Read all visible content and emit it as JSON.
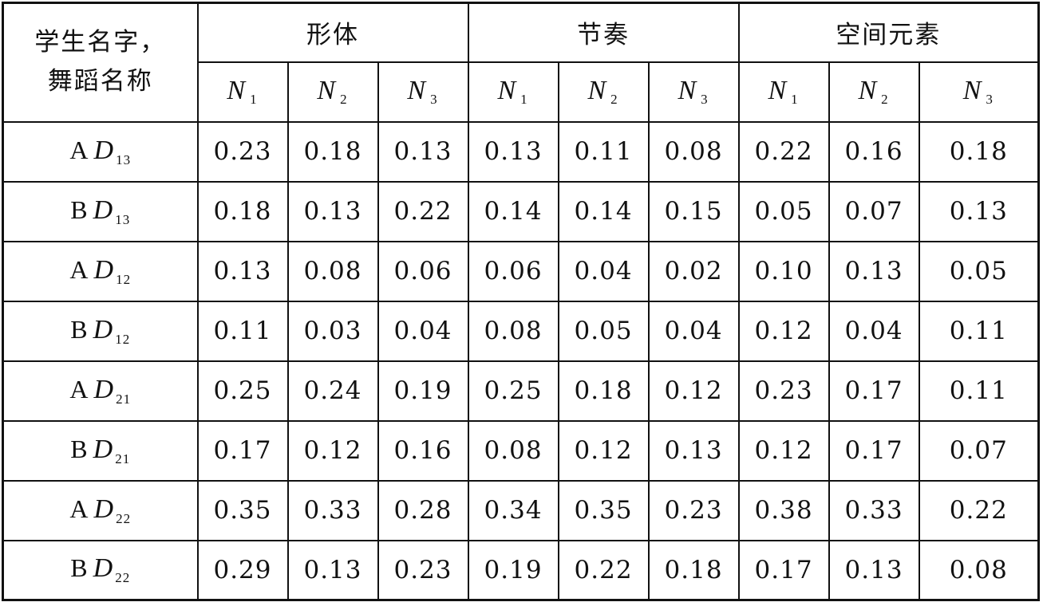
{
  "header": {
    "corner_line1": "学生名字，",
    "corner_line2": "舞蹈名称",
    "groups": [
      "形体",
      "节奏",
      "空间元素"
    ],
    "sub_letter": "N",
    "sub_indices": [
      "1",
      "2",
      "3"
    ]
  },
  "rows": [
    {
      "student": "A",
      "dance_letter": "D",
      "dance_index": "13",
      "values": [
        "0.23",
        "0.18",
        "0.13",
        "0.13",
        "0.11",
        "0.08",
        "0.22",
        "0.16",
        "0.18"
      ]
    },
    {
      "student": "B",
      "dance_letter": "D",
      "dance_index": "13",
      "values": [
        "0.18",
        "0.13",
        "0.22",
        "0.14",
        "0.14",
        "0.15",
        "0.05",
        "0.07",
        "0.13"
      ]
    },
    {
      "student": "A",
      "dance_letter": "D",
      "dance_index": "12",
      "values": [
        "0.13",
        "0.08",
        "0.06",
        "0.06",
        "0.04",
        "0.02",
        "0.10",
        "0.13",
        "0.05"
      ]
    },
    {
      "student": "B",
      "dance_letter": "D",
      "dance_index": "12",
      "values": [
        "0.11",
        "0.03",
        "0.04",
        "0.08",
        "0.05",
        "0.04",
        "0.12",
        "0.04",
        "0.11"
      ]
    },
    {
      "student": "A",
      "dance_letter": "D",
      "dance_index": "21",
      "values": [
        "0.25",
        "0.24",
        "0.19",
        "0.25",
        "0.18",
        "0.12",
        "0.23",
        "0.17",
        "0.11"
      ]
    },
    {
      "student": "B",
      "dance_letter": "D",
      "dance_index": "21",
      "values": [
        "0.17",
        "0.12",
        "0.16",
        "0.08",
        "0.12",
        "0.13",
        "0.12",
        "0.17",
        "0.07"
      ]
    },
    {
      "student": "A",
      "dance_letter": "D",
      "dance_index": "22",
      "values": [
        "0.35",
        "0.33",
        "0.28",
        "0.34",
        "0.35",
        "0.23",
        "0.38",
        "0.33",
        "0.22"
      ]
    },
    {
      "student": "B",
      "dance_letter": "D",
      "dance_index": "22",
      "values": [
        "0.29",
        "0.13",
        "0.23",
        "0.19",
        "0.22",
        "0.18",
        "0.17",
        "0.13",
        "0.08"
      ]
    }
  ]
}
